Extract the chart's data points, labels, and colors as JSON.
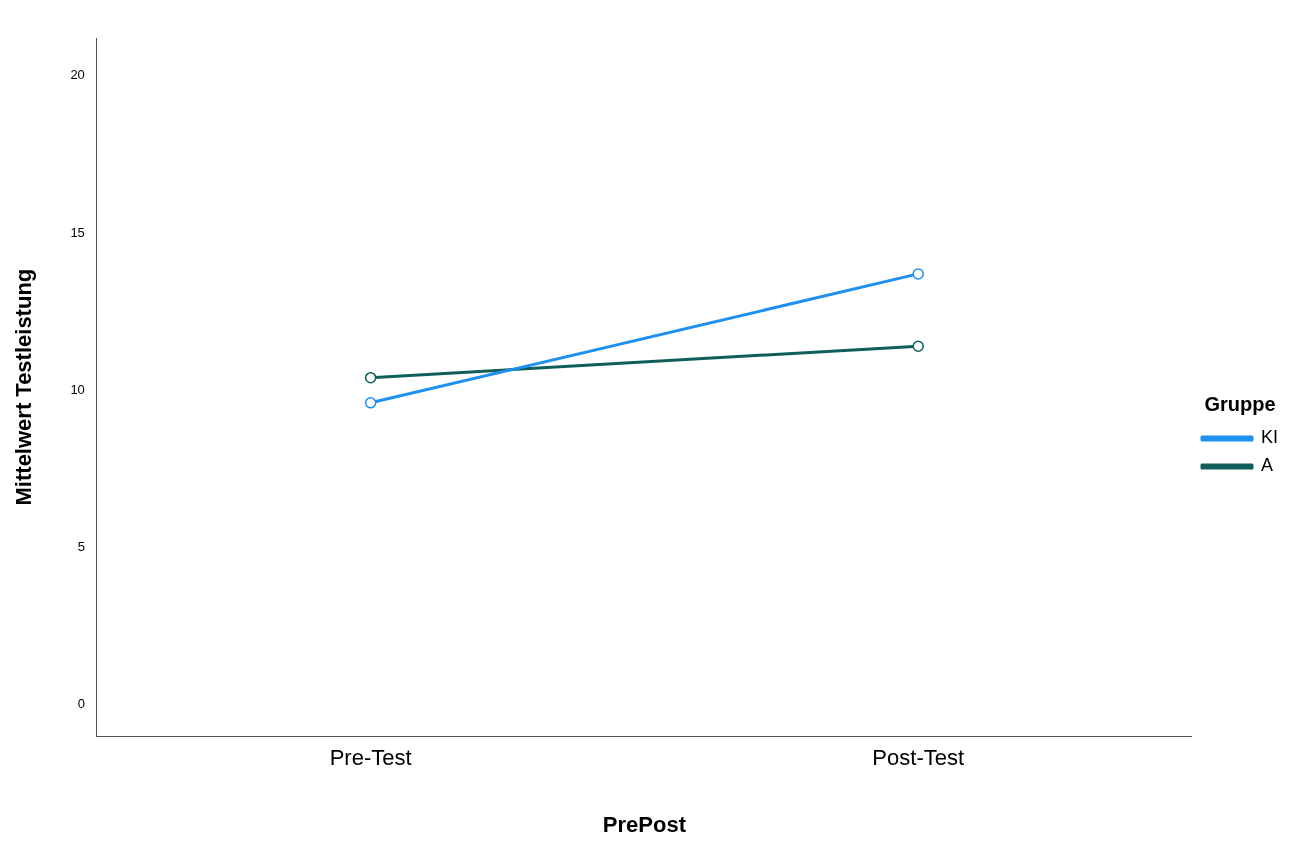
{
  "chart_data": {
    "type": "line",
    "xlabel": "PrePost",
    "ylabel": "Mittelwert Testleistung",
    "legend_title": "Gruppe",
    "categories": [
      "Pre-Test",
      "Post-Test"
    ],
    "series": [
      {
        "name": "KI",
        "color": "#1e90ef",
        "values": [
          9.6,
          13.7
        ]
      },
      {
        "name": "A",
        "color": "#0f5e5a",
        "values": [
          10.4,
          11.4
        ]
      }
    ],
    "ylim": [
      -1,
      21.2
    ],
    "yticks": [
      0,
      5,
      10,
      15,
      20
    ],
    "grid": false,
    "legend": "right",
    "marker": "circle",
    "line_style": "solid"
  }
}
